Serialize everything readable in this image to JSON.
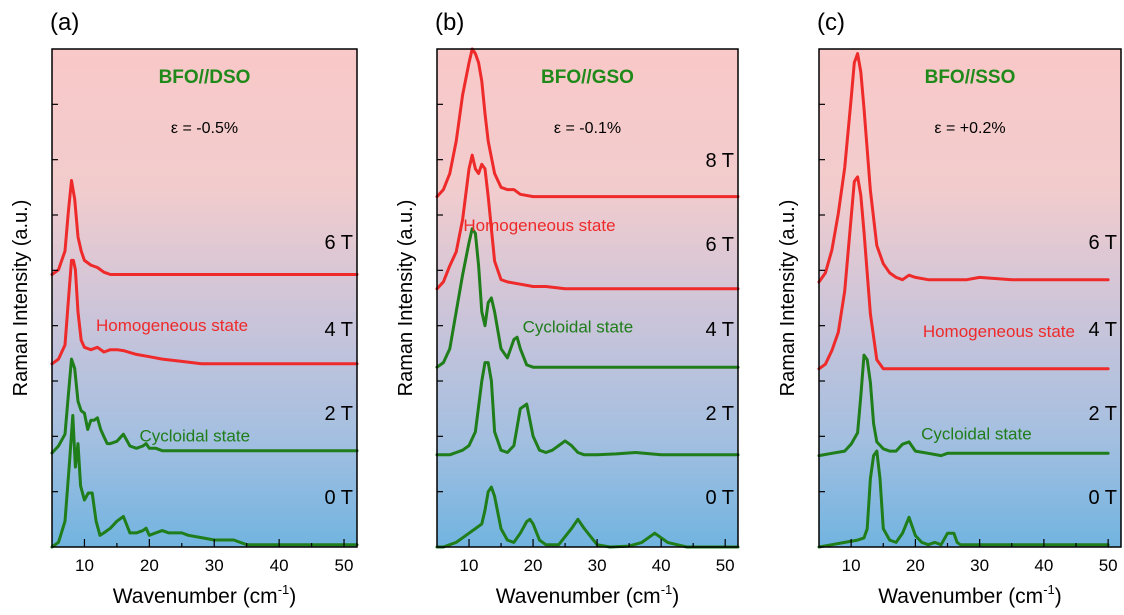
{
  "figure": {
    "shared": {
      "ylabel": "Raman Intensity (a.u.)",
      "xlabel_main": "Wavenumber (cm",
      "xlabel_sup": "-1",
      "xlabel_close": ")",
      "xlim": [
        5,
        52
      ],
      "xticks": [
        10,
        20,
        30,
        40,
        50
      ]
    },
    "colors": {
      "homogeneous": "#ee2a2a",
      "cycloidal": "#1f7d1a",
      "bg_top": "#f9c8c8",
      "bg_bottom": "#6fb2e0"
    }
  },
  "chart_data": [
    {
      "type": "line",
      "panel_label": "(a)",
      "title": "BFO//DSO",
      "subtitle": "ε = -0.5%",
      "xlabel": "Wavenumber (cm-1)",
      "ylabel": "Raman Intensity (a.u.)",
      "xlim": [
        5,
        52
      ],
      "ylim": [
        0,
        10.6
      ],
      "grid": false,
      "state_labels": [
        {
          "text": "Homogeneous state",
          "color": "#ee2a2a",
          "x": 23.5,
          "y": 4.6
        },
        {
          "text": "Cycloidal state",
          "color": "#1f7d1a",
          "x": 27,
          "y": 2.25
        }
      ],
      "series": [
        {
          "name": "0 T",
          "color": "#1f7d1a",
          "baseline": 0,
          "x": [
            5,
            6,
            7,
            7.7,
            8.2,
            8.6,
            9,
            9.4,
            10,
            10.6,
            11.2,
            11.8,
            12.4,
            13,
            14,
            15,
            16,
            17,
            18,
            19,
            19.5,
            20,
            21,
            22,
            23,
            24,
            25,
            26,
            28,
            30,
            33,
            35,
            38,
            42,
            46,
            50,
            52
          ],
          "y": [
            0,
            0.1,
            0.55,
            1.8,
            2.8,
            1.7,
            2.2,
            1.3,
            1.0,
            1.15,
            1.15,
            0.55,
            0.25,
            0.3,
            0.4,
            0.55,
            0.65,
            0.3,
            0.3,
            0.35,
            0.4,
            0.25,
            0.3,
            0.35,
            0.3,
            0.3,
            0.3,
            0.25,
            0.2,
            0.15,
            0.15,
            0.05,
            0.05,
            0.05,
            0.05,
            0.05,
            0.05
          ]
        },
        {
          "name": "2 T",
          "color": "#1f7d1a",
          "baseline": 2.0,
          "x": [
            5,
            6,
            7,
            7.5,
            8,
            8.5,
            9,
            9.5,
            10,
            10.5,
            11,
            11.5,
            12,
            12.5,
            13,
            13.5,
            14,
            15,
            16,
            17,
            18,
            19,
            19.5,
            20,
            21,
            22,
            24,
            26,
            28,
            30,
            35,
            40,
            45,
            50,
            52
          ],
          "y": [
            0,
            0.15,
            0.4,
            1.2,
            2.0,
            1.8,
            1.1,
            0.9,
            0.85,
            0.5,
            0.7,
            0.7,
            0.75,
            0.5,
            0.35,
            0.2,
            0.2,
            0.25,
            0.4,
            0.15,
            0.1,
            0.15,
            0.2,
            0.1,
            0.1,
            0.05,
            0.05,
            0.05,
            0.05,
            0.05,
            0.05,
            0.05,
            0.05,
            0.05,
            0.05
          ]
        },
        {
          "name": "4 T",
          "color": "#ee2a2a",
          "baseline": 3.9,
          "x": [
            5,
            6,
            7,
            7.5,
            8,
            8.3,
            8.6,
            9,
            9.5,
            10,
            11,
            12,
            13,
            14,
            15,
            16,
            18,
            20,
            22,
            25,
            28,
            30,
            35,
            40,
            45,
            50,
            52
          ],
          "y": [
            0,
            0.1,
            0.4,
            1.3,
            2.2,
            2.2,
            2.0,
            1.1,
            0.5,
            0.35,
            0.3,
            0.35,
            0.25,
            0.3,
            0.3,
            0.28,
            0.2,
            0.15,
            0.1,
            0.05,
            0,
            0,
            0,
            0,
            0,
            0,
            0
          ]
        },
        {
          "name": "6 T",
          "color": "#ee2a2a",
          "baseline": 5.8,
          "x": [
            5,
            6,
            7,
            7.5,
            8,
            8.5,
            9,
            9.5,
            10,
            11,
            12,
            13,
            14,
            15,
            20,
            25,
            30,
            35,
            40,
            45,
            50,
            52
          ],
          "y": [
            0,
            0.1,
            0.5,
            1.3,
            2.0,
            1.6,
            0.8,
            0.5,
            0.3,
            0.2,
            0.15,
            0.05,
            0,
            0,
            0,
            0,
            0,
            0,
            0,
            0,
            0,
            0
          ]
        }
      ]
    },
    {
      "type": "line",
      "panel_label": "(b)",
      "title": "BFO//GSO",
      "subtitle": "ε = -0.1%",
      "xlabel": "Wavenumber (cm-1)",
      "ylabel": "Raman Intensity (a.u.)",
      "xlim": [
        5,
        52
      ],
      "ylim": [
        0,
        10.8
      ],
      "grid": false,
      "state_labels": [
        {
          "text": "Homogeneous state",
          "color": "#ee2a2a",
          "x": 21,
          "y": 6.85
        },
        {
          "text": "Cycloidal state",
          "color": "#1f7d1a",
          "x": 27,
          "y": 4.65
        }
      ],
      "series": [
        {
          "name": "0 T",
          "color": "#1f7d1a",
          "baseline": 0,
          "x": [
            5,
            6,
            7,
            8,
            9,
            10,
            11,
            12,
            12.5,
            13,
            13.5,
            14,
            15,
            16,
            17,
            18,
            19,
            19.5,
            20,
            21,
            22,
            24,
            26,
            27,
            28,
            30,
            32,
            35,
            37,
            39,
            41,
            44,
            48,
            52
          ],
          "y": [
            0,
            0,
            0.05,
            0.1,
            0.2,
            0.3,
            0.4,
            0.5,
            0.8,
            1.2,
            1.3,
            1.1,
            0.4,
            0.15,
            0.1,
            0.3,
            0.55,
            0.6,
            0.5,
            0.15,
            0.05,
            0.05,
            0.4,
            0.6,
            0.4,
            0.05,
            0,
            0.02,
            0.1,
            0.3,
            0.1,
            0,
            0,
            0
          ]
        },
        {
          "name": "2 T",
          "color": "#1f7d1a",
          "baseline": 2.0,
          "x": [
            5,
            6,
            7,
            8,
            9,
            10,
            11,
            12,
            12.5,
            13,
            13.5,
            14,
            15,
            16,
            17,
            18,
            19,
            20,
            21,
            22,
            23,
            24,
            25,
            26,
            27,
            28,
            30,
            33,
            36,
            40,
            45,
            52
          ],
          "y": [
            0,
            0,
            0,
            0.05,
            0.1,
            0.2,
            0.5,
            1.6,
            2.0,
            2.0,
            1.6,
            0.5,
            0.1,
            0.05,
            0.2,
            1.0,
            1.1,
            0.4,
            0.1,
            0.05,
            0.1,
            0.2,
            0.3,
            0.2,
            0.05,
            0,
            0,
            0.02,
            0.05,
            0,
            0,
            0
          ]
        },
        {
          "name": "4 T",
          "color": "#1f7d1a",
          "baseline": 3.9,
          "x": [
            5,
            6,
            7,
            8,
            9,
            10,
            10.5,
            11,
            11.5,
            12,
            12.5,
            13,
            13.5,
            14,
            15,
            16,
            17,
            17.5,
            18,
            19,
            20,
            22,
            25,
            30,
            35,
            40,
            45,
            52
          ],
          "y": [
            0,
            0.1,
            0.4,
            1.2,
            2.0,
            2.7,
            3.0,
            2.9,
            2.2,
            1.2,
            0.9,
            1.4,
            1.5,
            1.2,
            0.4,
            0.2,
            0.6,
            0.65,
            0.4,
            0.05,
            0,
            0,
            0,
            0,
            0,
            0,
            0,
            0
          ]
        },
        {
          "name": "6 T",
          "color": "#ee2a2a",
          "baseline": 5.6,
          "x": [
            5,
            6,
            7,
            8,
            9,
            10,
            10.5,
            11,
            11.5,
            12,
            12.5,
            13,
            14,
            15,
            16,
            18,
            20,
            22,
            25,
            30,
            35,
            40,
            45,
            52
          ],
          "y": [
            0,
            0.15,
            0.5,
            0.8,
            1.5,
            2.6,
            2.9,
            2.6,
            2.5,
            2.7,
            2.6,
            2.0,
            0.6,
            0.2,
            0.15,
            0.1,
            0.05,
            0.05,
            0,
            0,
            0,
            0,
            0,
            0
          ]
        },
        {
          "name": "8 T",
          "color": "#ee2a2a",
          "baseline": 7.6,
          "x": [
            5,
            6,
            7,
            8,
            9,
            10,
            10.5,
            11,
            11.5,
            12,
            12.5,
            13,
            14,
            15,
            16,
            17,
            18,
            20,
            25,
            30,
            35,
            40,
            45,
            52
          ],
          "y": [
            0,
            0.15,
            0.5,
            1.2,
            2.2,
            2.9,
            3.2,
            3.1,
            2.9,
            2.5,
            1.8,
            1.2,
            0.5,
            0.2,
            0.15,
            0.15,
            0.05,
            0,
            0,
            0,
            0,
            0,
            0,
            0
          ]
        }
      ]
    },
    {
      "type": "line",
      "panel_label": "(c)",
      "title": "BFO//SSO",
      "subtitle": "ε = +0.2%",
      "xlabel": "Wavenumber (cm-1)",
      "ylabel": "Raman Intensity (a.u.)",
      "xlim": [
        5,
        52
      ],
      "ylim": [
        0,
        10.9
      ],
      "grid": false,
      "state_labels": [
        {
          "text": "Homogeneous state",
          "color": "#ee2a2a",
          "x": 33,
          "y": 4.6
        },
        {
          "text": "Cycloidal state",
          "color": "#1f7d1a",
          "x": 29.5,
          "y": 2.35
        }
      ],
      "series": [
        {
          "name": "0 T",
          "color": "#1f7d1a",
          "baseline": 0,
          "x": [
            5,
            7,
            9,
            11,
            12,
            12.5,
            13,
            13.5,
            14,
            14.5,
            15,
            16,
            17,
            18,
            19,
            20,
            21,
            22,
            23,
            24,
            25,
            26,
            26.5,
            27,
            28,
            30,
            35,
            40,
            45,
            50
          ],
          "y": [
            0,
            0.05,
            0.1,
            0.15,
            0.2,
            0.4,
            1.5,
            2.0,
            2.1,
            1.5,
            0.4,
            0.15,
            0.1,
            0.3,
            0.65,
            0.25,
            0.1,
            0.05,
            0.1,
            0.05,
            0.3,
            0.3,
            0.1,
            0.05,
            0.05,
            0.05,
            0.05,
            0.05,
            0.05,
            0.05
          ]
        },
        {
          "name": "2 T",
          "color": "#1f7d1a",
          "baseline": 2.0,
          "x": [
            5,
            7,
            9,
            10,
            11,
            11.5,
            12,
            12.5,
            13,
            13.5,
            14,
            15,
            16,
            17,
            18,
            19,
            20,
            22,
            24,
            25,
            30,
            35,
            40,
            45,
            50
          ],
          "y": [
            0,
            0.05,
            0.1,
            0.25,
            0.5,
            1.3,
            2.2,
            2.1,
            1.6,
            0.7,
            0.3,
            0.15,
            0.1,
            0.1,
            0.25,
            0.3,
            0.1,
            0.05,
            0,
            0.05,
            0.05,
            0.05,
            0.05,
            0.05,
            0.05
          ]
        },
        {
          "name": "4 T",
          "color": "#ee2a2a",
          "baseline": 3.9,
          "x": [
            5,
            6,
            7,
            8,
            9,
            10,
            10.5,
            11,
            11.5,
            12,
            13,
            14,
            15,
            16,
            17,
            20,
            25,
            30,
            35,
            40,
            45,
            50
          ],
          "y": [
            0,
            0.1,
            0.4,
            0.8,
            1.7,
            3.3,
            4.1,
            4.2,
            3.8,
            3.0,
            1.2,
            0.2,
            0,
            0,
            0,
            0,
            0,
            0,
            0,
            0,
            0,
            0
          ]
        },
        {
          "name": "6 T",
          "color": "#ee2a2a",
          "baseline": 5.8,
          "x": [
            5,
            6,
            7,
            8,
            9,
            10,
            10.5,
            11,
            11.5,
            12,
            13,
            14,
            15,
            16,
            17,
            18,
            19,
            20,
            22,
            25,
            28,
            30,
            35,
            40,
            45,
            50
          ],
          "y": [
            0,
            0.2,
            0.7,
            1.5,
            2.5,
            4.0,
            4.8,
            5.0,
            4.6,
            3.8,
            2.0,
            0.8,
            0.4,
            0.2,
            0.1,
            0.05,
            0.15,
            0.1,
            0.05,
            0.05,
            0.05,
            0.1,
            0.05,
            0.05,
            0.05,
            0.05
          ]
        }
      ]
    }
  ]
}
